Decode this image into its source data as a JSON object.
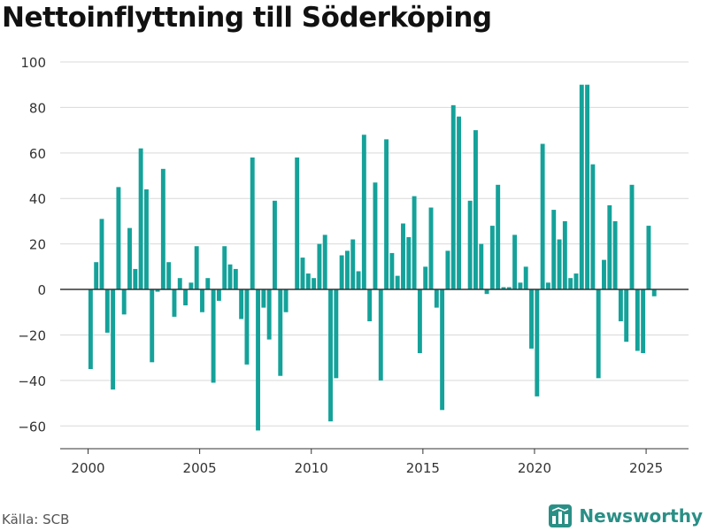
{
  "title": "Nettoinflyttning till Söderköping",
  "source": "Källa: SCB",
  "brand": {
    "name": "Newsworthy",
    "icon": "bar-chart-logo-icon"
  },
  "colors": {
    "bar": "#14a29a",
    "grid": "#d9d9d9",
    "zero": "#333333",
    "brand": "#2a8f86"
  },
  "chart_data": {
    "type": "bar",
    "title": "Nettoinflyttning till Söderköping",
    "xlabel": "",
    "ylabel": "",
    "ylim": [
      -70,
      100
    ],
    "xlim": [
      1998.75,
      2026.9
    ],
    "yticks": [
      100,
      80,
      60,
      40,
      20,
      0,
      -20,
      -40,
      -60
    ],
    "ytick_labels": [
      "100",
      "80",
      "60",
      "40",
      "20",
      "0",
      "−20",
      "−40",
      "−60"
    ],
    "xticks": [
      2000,
      2005,
      2010,
      2015,
      2020,
      2025
    ],
    "xtick_labels": [
      "2000",
      "2005",
      "2010",
      "2015",
      "2020",
      "2025"
    ],
    "grid": true,
    "legend": "none",
    "start": 2000,
    "quarter_width": 0.25,
    "values": [
      -35,
      12,
      31,
      -19,
      -44,
      45,
      -11,
      27,
      9,
      62,
      44,
      -32,
      -1,
      53,
      12,
      -12,
      5,
      -7,
      3,
      19,
      -10,
      5,
      -41,
      -5,
      19,
      11,
      9,
      -13,
      -33,
      58,
      -62,
      -8,
      -22,
      39,
      -38,
      -10,
      0,
      58,
      14,
      7,
      5,
      20,
      24,
      -58,
      -39,
      15,
      17,
      22,
      8,
      68,
      -14,
      47,
      -40,
      66,
      16,
      6,
      29,
      23,
      41,
      -28,
      10,
      36,
      -8,
      -53,
      17,
      81,
      76,
      0,
      39,
      70,
      20,
      -2,
      28,
      46,
      1,
      1,
      24,
      3,
      10,
      -26,
      -47,
      64,
      3,
      35,
      22,
      30,
      5,
      7,
      90,
      90,
      55,
      -39,
      13,
      37,
      30,
      -14,
      -23,
      46,
      -27,
      -28,
      28,
      -3
    ]
  }
}
